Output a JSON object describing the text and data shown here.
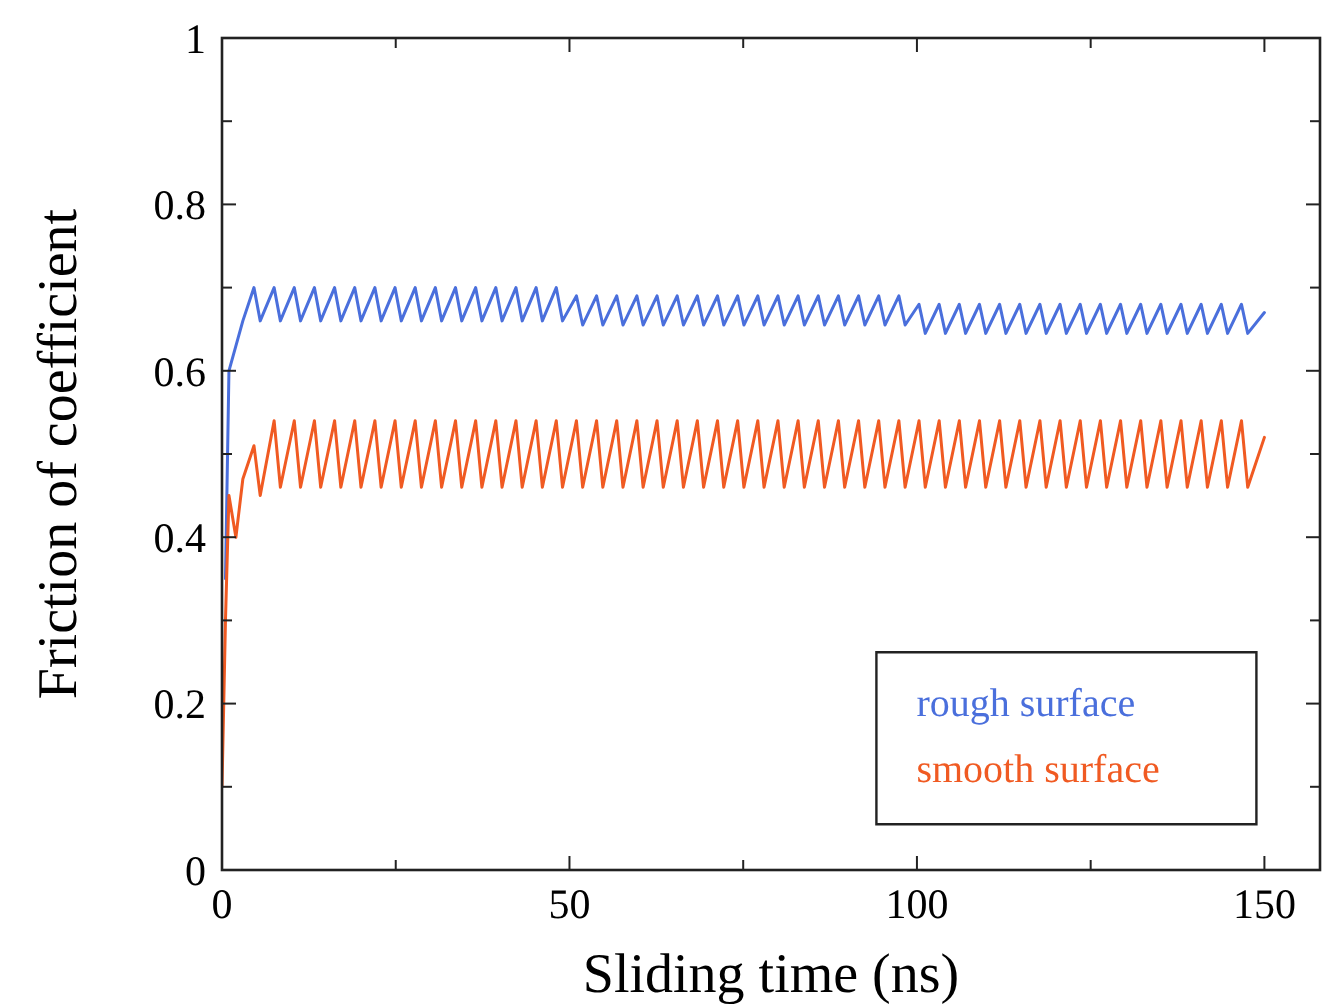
{
  "chart_data": {
    "type": "line",
    "xlabel": "Sliding time (ns)",
    "ylabel": "Friction of coefficient",
    "xlim": [
      0,
      158
    ],
    "ylim": [
      0,
      1
    ],
    "xticks": [
      0,
      {
        "value": 25,
        "label": null
      },
      50,
      {
        "value": 75,
        "label": null
      },
      100,
      {
        "value": 125,
        "label": null
      },
      150
    ],
    "yticks": [
      0,
      {
        "value": 0.1,
        "label": null
      },
      0.2,
      {
        "value": 0.3,
        "label": null
      },
      0.4,
      {
        "value": 0.5,
        "label": null
      },
      0.6,
      {
        "value": 0.7,
        "label": null
      },
      0.8,
      {
        "value": 0.9,
        "label": null
      },
      1
    ],
    "grid": false,
    "legend": "bottom right",
    "marker": "none",
    "line_style": "solid",
    "x": [
      0,
      0.5,
      1,
      2,
      3,
      4.6,
      5.5,
      7.5,
      8.4,
      10.4,
      11.3,
      13.3,
      14.2,
      16.2,
      17.1,
      19.1,
      20.0,
      22.0,
      22.9,
      24.9,
      25.8,
      27.8,
      28.7,
      30.7,
      31.6,
      33.6,
      34.5,
      36.5,
      37.4,
      39.4,
      40.3,
      42.3,
      43.2,
      45.2,
      46.1,
      48.1,
      49.0,
      51.0,
      51.9,
      53.9,
      54.8,
      56.8,
      57.7,
      59.7,
      60.6,
      62.6,
      63.5,
      65.5,
      66.4,
      68.4,
      69.3,
      71.3,
      72.2,
      74.2,
      75.1,
      77.1,
      78.0,
      80.0,
      80.9,
      82.9,
      83.8,
      85.8,
      86.7,
      88.7,
      89.6,
      91.6,
      92.5,
      94.5,
      95.4,
      97.4,
      98.3,
      100.3,
      101.2,
      103.2,
      104.1,
      106.1,
      107.0,
      109.0,
      109.9,
      111.9,
      112.8,
      114.8,
      115.7,
      117.7,
      118.6,
      120.6,
      121.5,
      123.5,
      124.4,
      126.4,
      127.3,
      129.3,
      130.2,
      132.2,
      133.1,
      135.1,
      136.0,
      138.0,
      138.9,
      140.9,
      141.8,
      143.8,
      144.7,
      146.7,
      147.6,
      150
    ],
    "series": [
      {
        "name": "rough surface",
        "color": "#4a6fdc",
        "values": [
          null,
          0.35,
          0.6,
          0.63,
          0.66,
          0.7,
          0.66,
          0.7,
          0.66,
          0.7,
          0.66,
          0.7,
          0.66,
          0.7,
          0.66,
          0.7,
          0.66,
          0.7,
          0.66,
          0.7,
          0.66,
          0.7,
          0.66,
          0.7,
          0.66,
          0.7,
          0.66,
          0.7,
          0.66,
          0.7,
          0.66,
          0.7,
          0.66,
          0.7,
          0.66,
          0.7,
          0.66,
          0.69,
          0.655,
          0.69,
          0.655,
          0.69,
          0.655,
          0.69,
          0.655,
          0.69,
          0.655,
          0.69,
          0.655,
          0.69,
          0.655,
          0.69,
          0.655,
          0.69,
          0.655,
          0.69,
          0.655,
          0.69,
          0.655,
          0.69,
          0.655,
          0.69,
          0.655,
          0.69,
          0.655,
          0.69,
          0.655,
          0.69,
          0.655,
          0.69,
          0.655,
          0.68,
          0.645,
          0.68,
          0.645,
          0.68,
          0.645,
          0.68,
          0.645,
          0.68,
          0.645,
          0.68,
          0.645,
          0.68,
          0.645,
          0.68,
          0.645,
          0.68,
          0.645,
          0.68,
          0.645,
          0.68,
          0.645,
          0.68,
          0.645,
          0.68,
          0.645,
          0.68,
          0.645,
          0.68,
          0.645,
          0.68,
          0.645,
          0.68,
          0.645,
          0.67
        ]
      },
      {
        "name": "smooth surface",
        "color": "#f05a22",
        "values": [
          0.1,
          0.3,
          0.45,
          0.4,
          0.47,
          0.51,
          0.45,
          0.54,
          0.46,
          0.54,
          0.46,
          0.54,
          0.46,
          0.54,
          0.46,
          0.54,
          0.46,
          0.54,
          0.46,
          0.54,
          0.46,
          0.54,
          0.46,
          0.54,
          0.46,
          0.54,
          0.46,
          0.54,
          0.46,
          0.54,
          0.46,
          0.54,
          0.46,
          0.54,
          0.46,
          0.54,
          0.46,
          0.54,
          0.46,
          0.54,
          0.46,
          0.54,
          0.46,
          0.54,
          0.46,
          0.54,
          0.46,
          0.54,
          0.46,
          0.54,
          0.46,
          0.54,
          0.46,
          0.54,
          0.46,
          0.54,
          0.46,
          0.54,
          0.46,
          0.54,
          0.46,
          0.54,
          0.46,
          0.54,
          0.46,
          0.54,
          0.46,
          0.54,
          0.46,
          0.54,
          0.46,
          0.54,
          0.46,
          0.54,
          0.46,
          0.54,
          0.46,
          0.54,
          0.46,
          0.54,
          0.46,
          0.54,
          0.46,
          0.54,
          0.46,
          0.54,
          0.46,
          0.54,
          0.46,
          0.54,
          0.46,
          0.54,
          0.46,
          0.54,
          0.46,
          0.54,
          0.46,
          0.54,
          0.46,
          0.54,
          0.46,
          0.54,
          0.46,
          0.54,
          0.46,
          0.52
        ]
      }
    ]
  }
}
